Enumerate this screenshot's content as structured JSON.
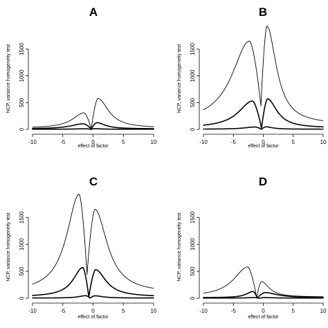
{
  "chart_data": [
    {
      "type": "line",
      "title": "A",
      "xlabel": "effect of factor",
      "ylabel": "NCP, variance homogeneity test",
      "xlim": [
        -10,
        10
      ],
      "ylim": [
        0,
        1900
      ],
      "xticks": [
        "-10",
        "-5",
        "0",
        "5",
        "10"
      ],
      "yticks": [
        "0",
        "500",
        "1000",
        "1500"
      ],
      "grid": false,
      "series": [
        {
          "peaks": [
            {
              "x": -1.5,
              "y": 310
            },
            {
              "x": 0.8,
              "y": 580
            }
          ],
          "dip_x": -0.3,
          "dip_y": 5,
          "baseline": 22,
          "linewidth": "thin"
        },
        {
          "peaks": [
            {
              "x": -1.6,
              "y": 105
            },
            {
              "x": 0.6,
              "y": 125
            }
          ],
          "dip_x": -0.3,
          "dip_y": 5,
          "baseline": 10,
          "linewidth": "thick"
        },
        {
          "peaks": [
            {
              "x": -1.3,
              "y": 12
            },
            {
              "x": 0.3,
              "y": 14
            }
          ],
          "dip_x": -0.3,
          "dip_y": 1,
          "baseline": 3,
          "linewidth": "thick"
        }
      ]
    },
    {
      "type": "line",
      "title": "B",
      "xlabel": "effect of factor",
      "ylabel": "NCP, variance homogeneity test",
      "xlim": [
        -10,
        10
      ],
      "ylim": [
        0,
        1900
      ],
      "xticks": [
        "-10",
        "-5",
        "0",
        "5",
        "10"
      ],
      "yticks": [
        "0",
        "500",
        "1000",
        "1500"
      ],
      "grid": false,
      "series": [
        {
          "peaks": [
            {
              "x": -2.3,
              "y": 1650
            },
            {
              "x": 0.6,
              "y": 1930
            }
          ],
          "dip_x": -0.4,
          "dip_y": 440,
          "baseline": 90,
          "linewidth": "thin"
        },
        {
          "peaks": [
            {
              "x": -1.8,
              "y": 530
            },
            {
              "x": 0.7,
              "y": 570
            }
          ],
          "dip_x": -0.3,
          "dip_y": 20,
          "baseline": 25,
          "linewidth": "thick"
        },
        {
          "peaks": [
            {
              "x": -1.4,
              "y": 45
            },
            {
              "x": 0.4,
              "y": 48
            }
          ],
          "dip_x": -0.3,
          "dip_y": 2,
          "baseline": 4,
          "linewidth": "thick"
        }
      ]
    },
    {
      "type": "line",
      "title": "C",
      "xlabel": "effect of factor",
      "ylabel": "NCP, variance homogeneity test",
      "xlim": [
        -10,
        10
      ],
      "ylim": [
        0,
        1900
      ],
      "xticks": [
        "-10",
        "-5",
        "0",
        "5",
        "10"
      ],
      "yticks": [
        "0",
        "500",
        "1000",
        "1500"
      ],
      "grid": false,
      "series": [
        {
          "peaks": [
            {
              "x": -2.3,
              "y": 1930
            },
            {
              "x": 0.3,
              "y": 1650
            }
          ],
          "dip_x": -1.0,
          "dip_y": 440,
          "baseline": 90,
          "linewidth": "thin"
        },
        {
          "peaks": [
            {
              "x": -1.7,
              "y": 570
            },
            {
              "x": 0.4,
              "y": 530
            }
          ],
          "dip_x": -0.7,
          "dip_y": 20,
          "baseline": 25,
          "linewidth": "thick"
        },
        {
          "peaks": [
            {
              "x": -1.2,
              "y": 48
            },
            {
              "x": 0.3,
              "y": 45
            }
          ],
          "dip_x": -0.5,
          "dip_y": 2,
          "baseline": 4,
          "linewidth": "thick"
        }
      ]
    },
    {
      "type": "line",
      "title": "D",
      "xlabel": "effect of factor",
      "ylabel": "NCP, variance homogeneity test",
      "xlim": [
        -10,
        10
      ],
      "ylim": [
        0,
        1900
      ],
      "xticks": [
        "-10",
        "-5",
        "0",
        "5",
        "10"
      ],
      "yticks": [
        "0",
        "500",
        "1000",
        "1500"
      ],
      "grid": false,
      "series": [
        {
          "peaks": [
            {
              "x": -2.6,
              "y": 580
            },
            {
              "x": -0.3,
              "y": 310
            }
          ],
          "dip_x": -1.1,
          "dip_y": 5,
          "baseline": 22,
          "linewidth": "thin"
        },
        {
          "peaks": [
            {
              "x": -1.7,
              "y": 125
            },
            {
              "x": 0.3,
              "y": 105
            }
          ],
          "dip_x": -1.0,
          "dip_y": 5,
          "baseline": 10,
          "linewidth": "thick"
        },
        {
          "peaks": [
            {
              "x": -1.4,
              "y": 14
            },
            {
              "x": 0.2,
              "y": 12
            }
          ],
          "dip_x": -0.7,
          "dip_y": 1,
          "baseline": 3,
          "linewidth": "thick"
        }
      ]
    }
  ]
}
